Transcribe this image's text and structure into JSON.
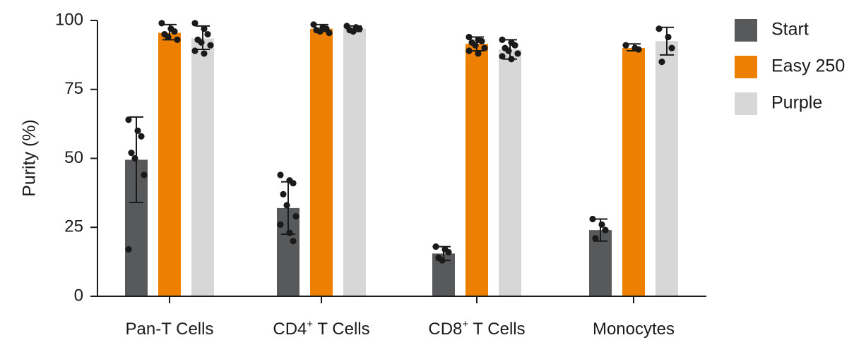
{
  "chart_data": {
    "type": "bar",
    "title": "",
    "xlabel": "",
    "ylabel": "Purity (%)",
    "ylim": [
      0,
      100
    ],
    "yticks": [
      0,
      25,
      50,
      75,
      100
    ],
    "categories": [
      {
        "main": "Pan-T Cells",
        "sup": "",
        "rest": ""
      },
      {
        "main": "CD4",
        "sup": "+",
        "rest": " T Cells"
      },
      {
        "main": "CD8",
        "sup": "+",
        "rest": " T Cells"
      },
      {
        "main": "Monocytes",
        "sup": "",
        "rest": ""
      }
    ],
    "legend_position": "right",
    "grid": false,
    "series": [
      {
        "name": "Start",
        "color": "#58595b",
        "values": [
          49.5,
          32,
          15.5,
          24
        ],
        "errors": [
          [
            34,
            65
          ],
          [
            22.5,
            41.5
          ],
          [
            13,
            18
          ],
          [
            20,
            28
          ]
        ],
        "points": [
          [
            64,
            60,
            58,
            52,
            50,
            44,
            17
          ],
          [
            44,
            42,
            41,
            37,
            33,
            29,
            26,
            23,
            20
          ],
          [
            18,
            17,
            16,
            14,
            13
          ],
          [
            28,
            26,
            24,
            21
          ]
        ]
      },
      {
        "name": "Easy 250",
        "color": "#ee8000",
        "values": [
          95.5,
          97,
          91.5,
          90
        ],
        "errors": [
          [
            93,
            98.5
          ],
          [
            96,
            98.5
          ],
          [
            89,
            94
          ],
          [
            89,
            91.5
          ]
        ],
        "points": [
          [
            99,
            97,
            96,
            95,
            94,
            93
          ],
          [
            98.5,
            97.5,
            97,
            96.5,
            96,
            95.5
          ],
          [
            94,
            93,
            92.5,
            92,
            91,
            90,
            89,
            88
          ],
          [
            91,
            90,
            89.5
          ]
        ]
      },
      {
        "name": "Purple",
        "color": "#d7d7d7",
        "values": [
          93.5,
          97,
          89.5,
          92.5
        ],
        "errors": [
          [
            89.5,
            98
          ],
          [
            96,
            98
          ],
          [
            86,
            93
          ],
          [
            87.5,
            97.5
          ]
        ],
        "points": [
          [
            99,
            97,
            95,
            93,
            92,
            91,
            89,
            88
          ],
          [
            98,
            97.5,
            97,
            96.5,
            96
          ],
          [
            93,
            92,
            91,
            90,
            89,
            88,
            87,
            86
          ],
          [
            97,
            94,
            90,
            85
          ]
        ]
      }
    ]
  }
}
